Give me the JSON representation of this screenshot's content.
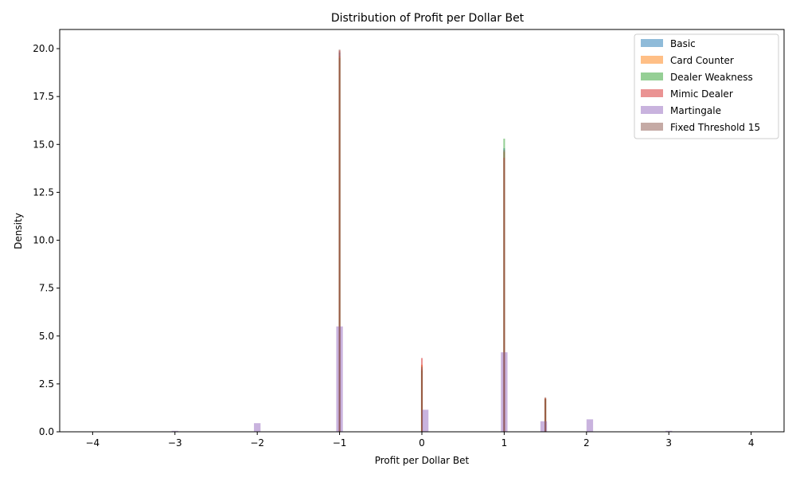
{
  "chart_data": {
    "type": "bar",
    "title": "Distribution of Profit per Dollar Bet",
    "xlabel": "Profit per Dollar Bet",
    "ylabel": "Density",
    "xlim": [
      -4.4,
      4.4
    ],
    "ylim": [
      0,
      21
    ],
    "xticks": [
      -4,
      -3,
      -2,
      -1,
      0,
      1,
      2,
      3,
      4
    ],
    "xtick_labels": [
      "−4",
      "−3",
      "−2",
      "−1",
      "0",
      "1",
      "2",
      "3",
      "4"
    ],
    "yticks": [
      0,
      2.5,
      5,
      7.5,
      10,
      12.5,
      15,
      17.5,
      20
    ],
    "ytick_labels": [
      "0.0",
      "2.5",
      "5.0",
      "7.5",
      "10.0",
      "12.5",
      "15.0",
      "17.5",
      "20.0"
    ],
    "grid": false,
    "legend_position": "top-right",
    "series": [
      {
        "name": "Basic",
        "color": "#1f77b4",
        "bars": [
          {
            "x": -1.0,
            "w": 0.02,
            "y": 19.8
          },
          {
            "x": 0.0,
            "w": 0.02,
            "y": 3.3
          },
          {
            "x": 1.0,
            "w": 0.02,
            "y": 14.8
          },
          {
            "x": 1.5,
            "w": 0.02,
            "y": 1.7
          }
        ]
      },
      {
        "name": "Card Counter",
        "color": "#ff7f0e",
        "bars": [
          {
            "x": -1.0,
            "w": 0.02,
            "y": 19.6
          },
          {
            "x": 0.0,
            "w": 0.02,
            "y": 3.5
          },
          {
            "x": 1.0,
            "w": 0.02,
            "y": 14.6
          },
          {
            "x": 1.5,
            "w": 0.02,
            "y": 1.75
          }
        ]
      },
      {
        "name": "Dealer Weakness",
        "color": "#2ca02c",
        "bars": [
          {
            "x": -1.0,
            "w": 0.02,
            "y": 19.5
          },
          {
            "x": 0.0,
            "w": 0.02,
            "y": 3.2
          },
          {
            "x": 1.0,
            "w": 0.02,
            "y": 15.3
          },
          {
            "x": 1.5,
            "w": 0.02,
            "y": 1.7
          }
        ]
      },
      {
        "name": "Mimic Dealer",
        "color": "#d62728",
        "bars": [
          {
            "x": -1.0,
            "w": 0.02,
            "y": 19.9
          },
          {
            "x": 0.0,
            "w": 0.02,
            "y": 3.85
          },
          {
            "x": 1.0,
            "w": 0.02,
            "y": 14.3
          },
          {
            "x": 1.5,
            "w": 0.02,
            "y": 1.75
          }
        ]
      },
      {
        "name": "Martingale",
        "color": "#9467bd",
        "bars": [
          {
            "x": -3.0,
            "w": 0.08,
            "y": 0.05
          },
          {
            "x": -2.0,
            "w": 0.08,
            "y": 0.45
          },
          {
            "x": -1.0,
            "w": 0.08,
            "y": 5.5
          },
          {
            "x": 0.04,
            "w": 0.08,
            "y": 1.15
          },
          {
            "x": 1.0,
            "w": 0.08,
            "y": 4.15
          },
          {
            "x": 1.48,
            "w": 0.08,
            "y": 0.55
          },
          {
            "x": 2.04,
            "w": 0.08,
            "y": 0.65
          },
          {
            "x": 3.0,
            "w": 0.08,
            "y": 0.05
          }
        ]
      },
      {
        "name": "Fixed Threshold 15",
        "color": "#8c564b",
        "bars": [
          {
            "x": -1.0,
            "w": 0.02,
            "y": 19.95
          },
          {
            "x": 0.0,
            "w": 0.02,
            "y": 3.4
          },
          {
            "x": 1.0,
            "w": 0.02,
            "y": 14.7
          },
          {
            "x": 1.5,
            "w": 0.02,
            "y": 1.8
          }
        ]
      }
    ]
  }
}
